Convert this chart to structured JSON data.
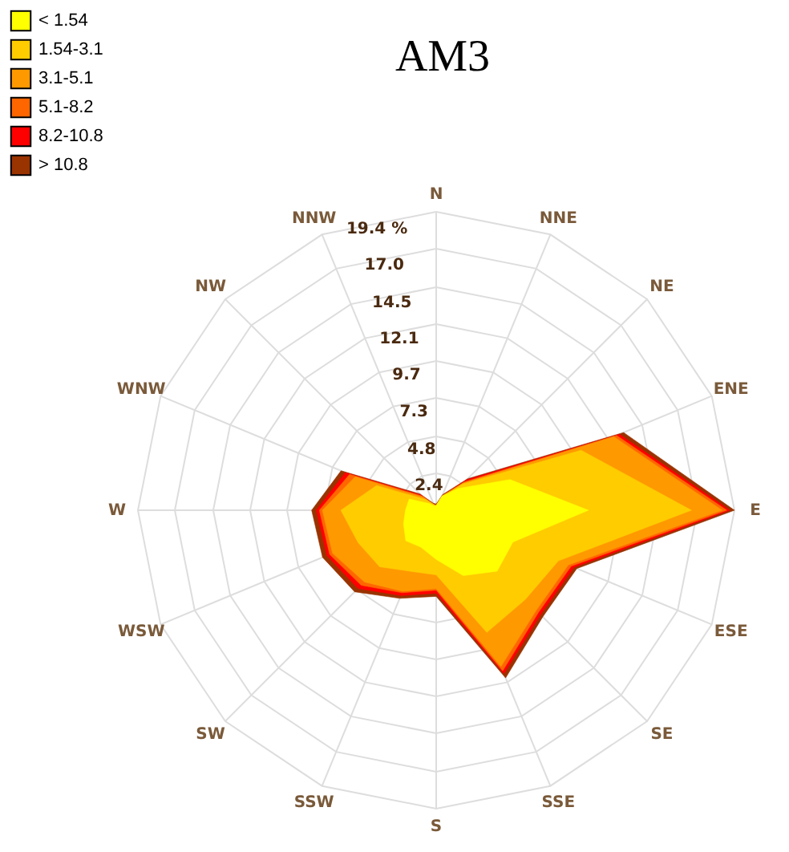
{
  "chart_data": {
    "type": "radar",
    "title": "AM3",
    "categories": [
      "N",
      "NNE",
      "NE",
      "ENE",
      "E",
      "ESE",
      "SE",
      "SSE",
      "S",
      "SSW",
      "SW",
      "WSW",
      "W",
      "WNW",
      "NW",
      "NNW"
    ],
    "series": [
      {
        "name": "> 10.8",
        "color": "#993300",
        "values": [
          0.4,
          1.1,
          2.9,
          13.2,
          19.4,
          9.9,
          9.8,
          11.8,
          5.6,
          6.2,
          7.5,
          8.0,
          8.1,
          6.7,
          1.5,
          0.5
        ]
      },
      {
        "name": "8.2-10.8",
        "color": "#ff0000",
        "values": [
          0.3,
          1.0,
          2.8,
          12.9,
          19.1,
          9.7,
          9.6,
          11.5,
          5.4,
          6.0,
          7.2,
          7.7,
          7.8,
          6.4,
          1.4,
          0.4
        ]
      },
      {
        "name": "5.1-8.2",
        "color": "#ff6600",
        "values": [
          0.3,
          1.0,
          2.6,
          12.7,
          18.9,
          9.5,
          9.4,
          11.3,
          5.2,
          5.8,
          6.9,
          7.5,
          7.6,
          6.1,
          1.3,
          0.4
        ]
      },
      {
        "name": "3.1-5.1",
        "color": "#ff9900",
        "values": [
          0.3,
          1.0,
          2.5,
          12.5,
          18.6,
          9.3,
          9.2,
          11.0,
          5.1,
          5.7,
          6.6,
          7.3,
          7.4,
          5.7,
          1.2,
          0.4
        ]
      },
      {
        "name": "1.54-3.1",
        "color": "#ffcc00",
        "values": [
          0.3,
          0.9,
          2.4,
          10.2,
          16.6,
          8.6,
          8.2,
          8.6,
          4.2,
          4.3,
          5.2,
          5.5,
          6.2,
          4.2,
          1.0,
          0.4
        ]
      },
      {
        "name": "< 1.54",
        "color": "#ffff00",
        "values": [
          0.3,
          1.0,
          2.0,
          5.2,
          9.9,
          5.4,
          5.6,
          4.6,
          3.2,
          2.6,
          2.8,
          2.3,
          2.0,
          1.9,
          0.6,
          0.3
        ]
      }
    ],
    "ylim": [
      0,
      19.4
    ],
    "yticks": [
      2.4,
      4.8,
      7.3,
      9.7,
      12.1,
      14.5,
      {
        "value": 17,
        "label": "17.0"
      },
      {
        "value": 19.4,
        "label": "19.4 %"
      }
    ],
    "grid": true,
    "legend": "top left",
    "marker": "none"
  }
}
